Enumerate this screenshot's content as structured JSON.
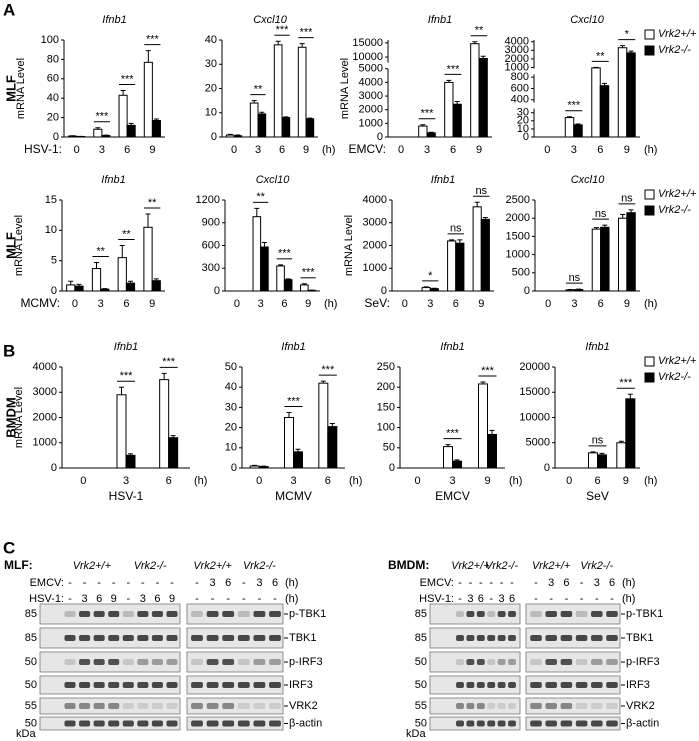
{
  "panel_labels": [
    "A",
    "B",
    "C"
  ],
  "chart_data": [
    {
      "type": "bar",
      "title": "Ifnb1",
      "row_label": "MLF",
      "ylabel": "mRNA Level",
      "x_prefix": "HSV-1:",
      "categories": [
        "0",
        "3",
        "6",
        "9"
      ],
      "series": [
        {
          "color": "#ffffff",
          "values": [
            1,
            8,
            43,
            77
          ],
          "errors": [
            0.3,
            1.5,
            5,
            12
          ]
        },
        {
          "color": "#000000",
          "values": [
            0.5,
            1.5,
            12,
            17
          ],
          "errors": [
            0.2,
            0.4,
            2,
            1.5
          ]
        }
      ],
      "significance": [
        null,
        "***",
        "***",
        "***"
      ],
      "ylim": [
        0,
        100
      ],
      "yticks": [
        0,
        20,
        40,
        60,
        80,
        100
      ]
    },
    {
      "type": "bar",
      "title": "Cxcl10",
      "x_suffix": "(h)",
      "categories": [
        "0",
        "3",
        "6",
        "9"
      ],
      "series": [
        {
          "color": "#ffffff",
          "values": [
            0.8,
            14,
            38,
            37
          ],
          "errors": [
            0.3,
            1,
            1.5,
            1.5
          ]
        },
        {
          "color": "#000000",
          "values": [
            0.5,
            9.5,
            8,
            7.5
          ],
          "errors": [
            0.3,
            0.7,
            0.3,
            0.3
          ]
        }
      ],
      "significance": [
        null,
        "**",
        "***",
        "***"
      ],
      "ylim": [
        0,
        40
      ],
      "yticks": [
        0,
        10,
        20,
        30,
        40
      ]
    },
    {
      "type": "bar",
      "title": "Ifnb1",
      "ylabel": "mRNA Level",
      "x_prefix": "EMCV:",
      "categories": [
        "0",
        "3",
        "6",
        "9"
      ],
      "series": [
        {
          "color": "#ffffff",
          "values": [
            0,
            800,
            4000,
            14700
          ],
          "errors": [
            0,
            100,
            150,
            700
          ]
        },
        {
          "color": "#000000",
          "values": [
            0,
            300,
            2400,
            9500
          ],
          "errors": [
            0,
            50,
            200,
            800
          ]
        }
      ],
      "significance": [
        null,
        "***",
        "***",
        "**"
      ],
      "y_segments": [
        [
          0,
          5000
        ],
        [
          8000,
          16000
        ]
      ],
      "yticks": [
        0,
        1000,
        2000,
        3000,
        4000,
        5000,
        10000,
        15000
      ]
    },
    {
      "type": "bar",
      "title": "Cxcl10",
      "x_suffix": "(h)",
      "categories": [
        "0",
        "3",
        "6",
        "9"
      ],
      "series": [
        {
          "name": "Vrk2+/+",
          "color": "#ffffff",
          "values": [
            0,
            24,
            950,
            3300
          ],
          "errors": [
            0,
            1,
            60,
            250
          ]
        },
        {
          "name": "Vrk2-/-",
          "color": "#000000",
          "values": [
            0,
            15,
            650,
            2700
          ],
          "errors": [
            0,
            1,
            40,
            200
          ]
        }
      ],
      "significance": [
        null,
        "***",
        "**",
        "*"
      ],
      "y_segments": [
        [
          0,
          35
        ],
        [
          350,
          850
        ],
        [
          900,
          4200
        ]
      ],
      "yticks": [
        0,
        10,
        20,
        30,
        400,
        600,
        800,
        1000,
        2000,
        3000,
        4000
      ],
      "legend": "right"
    },
    {
      "type": "bar",
      "title": "Ifnb1",
      "row_label": "MLF",
      "ylabel": "mRNA Level",
      "x_prefix": "MCMV:",
      "categories": [
        "0",
        "3",
        "6",
        "9"
      ],
      "series": [
        {
          "color": "#ffffff",
          "values": [
            1,
            3.7,
            5.5,
            10.5
          ],
          "errors": [
            0.6,
            1,
            2,
            2.2
          ]
        },
        {
          "color": "#000000",
          "values": [
            0.8,
            0.3,
            1.3,
            1.7
          ],
          "errors": [
            0.3,
            0.1,
            0.3,
            0.3
          ]
        }
      ],
      "significance": [
        null,
        "**",
        "**",
        "**"
      ],
      "ylim": [
        0,
        15
      ],
      "yticks": [
        0,
        5,
        10,
        15
      ]
    },
    {
      "type": "bar",
      "title": "Cxcl10",
      "x_suffix": "(h)",
      "categories": [
        "0",
        "3",
        "6",
        "9"
      ],
      "series": [
        {
          "color": "#ffffff",
          "values": [
            0,
            980,
            330,
            80
          ],
          "errors": [
            0,
            110,
            15,
            15
          ]
        },
        {
          "color": "#000000",
          "values": [
            0,
            580,
            150,
            8
          ],
          "errors": [
            0,
            60,
            10,
            3
          ]
        }
      ],
      "significance": [
        null,
        "**",
        "***",
        "***"
      ],
      "ylim": [
        0,
        1200
      ],
      "yticks": [
        0,
        300,
        600,
        900,
        1200
      ]
    },
    {
      "type": "bar",
      "title": "Ifnb1",
      "ylabel": "mRNA Level",
      "x_prefix": "SeV:",
      "categories": [
        "0",
        "3",
        "6",
        "9"
      ],
      "series": [
        {
          "color": "#ffffff",
          "values": [
            0,
            150,
            2200,
            3700
          ],
          "errors": [
            0,
            30,
            50,
            200
          ]
        },
        {
          "color": "#000000",
          "values": [
            0,
            100,
            2100,
            3150
          ],
          "errors": [
            0,
            20,
            150,
            80
          ]
        }
      ],
      "significance": [
        null,
        "*",
        "ns",
        "ns"
      ],
      "ylim": [
        0,
        4000
      ],
      "yticks": [
        0,
        1000,
        2000,
        3000,
        4000
      ]
    },
    {
      "type": "bar",
      "title": "Cxcl10",
      "x_suffix": "(h)",
      "categories": [
        "0",
        "3",
        "6",
        "9"
      ],
      "series": [
        {
          "name": "Vrk2+/+",
          "color": "#ffffff",
          "values": [
            0,
            30,
            1700,
            2000
          ],
          "errors": [
            0,
            10,
            40,
            100
          ]
        },
        {
          "name": "Vrk2-/-",
          "color": "#000000",
          "values": [
            0,
            40,
            1750,
            2150
          ],
          "errors": [
            0,
            10,
            60,
            80
          ]
        }
      ],
      "significance": [
        null,
        "ns",
        "ns",
        "ns"
      ],
      "ylim": [
        0,
        2500
      ],
      "yticks": [
        0,
        500,
        1000,
        1500,
        2000,
        2500
      ],
      "legend": "right"
    },
    {
      "type": "bar",
      "title": "Ifnb1",
      "row_label": "BMDM",
      "ylabel": "mRNA Level",
      "xlabel": "HSV-1",
      "x_suffix": "(h)",
      "categories": [
        "0",
        "3",
        "6"
      ],
      "series": [
        {
          "color": "#ffffff",
          "values": [
            0,
            2900,
            3500
          ],
          "errors": [
            0,
            300,
            250
          ]
        },
        {
          "color": "#000000",
          "values": [
            0,
            500,
            1200
          ],
          "errors": [
            0,
            60,
            80
          ]
        }
      ],
      "significance": [
        null,
        "***",
        "***"
      ],
      "ylim": [
        0,
        4000
      ],
      "yticks": [
        0,
        1000,
        2000,
        3000,
        4000
      ]
    },
    {
      "type": "bar",
      "title": "Ifnb1",
      "xlabel": "MCMV",
      "x_suffix": "(h)",
      "categories": [
        "0",
        "3",
        "6"
      ],
      "series": [
        {
          "color": "#ffffff",
          "values": [
            1,
            25,
            42
          ],
          "errors": [
            0.3,
            2.5,
            1
          ]
        },
        {
          "color": "#000000",
          "values": [
            0.7,
            8,
            20.5
          ],
          "errors": [
            0.2,
            1.3,
            1.5
          ]
        }
      ],
      "significance": [
        null,
        "***",
        "***"
      ],
      "ylim": [
        0,
        50
      ],
      "yticks": [
        0,
        10,
        20,
        30,
        40,
        50
      ]
    },
    {
      "type": "bar",
      "title": "Ifnb1",
      "xlabel": "EMCV",
      "x_suffix": "(h)",
      "categories": [
        "0",
        "3",
        "9"
      ],
      "series": [
        {
          "color": "#ffffff",
          "values": [
            0,
            53,
            208
          ],
          "errors": [
            0,
            5,
            5
          ]
        },
        {
          "color": "#000000",
          "values": [
            0,
            17,
            83
          ],
          "errors": [
            0,
            3,
            10
          ]
        }
      ],
      "significance": [
        null,
        "***",
        "***"
      ],
      "ylim": [
        0,
        250
      ],
      "yticks": [
        0,
        50,
        100,
        150,
        200,
        250
      ]
    },
    {
      "type": "bar",
      "title": "Ifnb1",
      "xlabel": "SeV",
      "x_suffix": "(h)",
      "categories": [
        "0",
        "6",
        "9"
      ],
      "series": [
        {
          "name": "Vrk2+/+",
          "color": "#ffffff",
          "values": [
            0,
            3000,
            5000
          ],
          "errors": [
            0,
            200,
            300
          ]
        },
        {
          "name": "Vrk2-/-",
          "color": "#000000",
          "values": [
            0,
            2600,
            13700
          ],
          "errors": [
            0,
            300,
            900
          ]
        }
      ],
      "significance": [
        null,
        "ns",
        "***"
      ],
      "ylim": [
        0,
        20000
      ],
      "yticks": [
        0,
        5000,
        10000,
        15000,
        20000
      ],
      "legend": "right"
    }
  ],
  "blots": [
    {
      "cell": "MLF:",
      "treatments": [
        "EMCV:",
        "HSV-1:"
      ],
      "unit": "(h)",
      "kda": "kDa",
      "markers": [
        85,
        85,
        50,
        50,
        55,
        50
      ],
      "proteins": [
        "p-TBK1",
        "TBK1",
        "p-IRF3",
        "IRF3",
        "VRK2",
        "β-actin"
      ],
      "blocks": [
        {
          "groups": [
            "Vrk2+/+",
            "Vrk2-/-"
          ],
          "lanes": [
            [
              "-",
              "-",
              "-",
              "-",
              "-",
              "-",
              "-",
              "-"
            ],
            [
              "-",
              "3",
              "6",
              "9",
              "-",
              "3",
              "6",
              "9"
            ]
          ]
        },
        {
          "groups": [
            "Vrk2+/+",
            "Vrk2-/-"
          ],
          "lanes": [
            [
              "-",
              "3",
              "6",
              "-",
              "3",
              "6"
            ],
            [
              "-",
              "-",
              "-",
              "-",
              "-",
              "-"
            ]
          ]
        }
      ]
    },
    {
      "cell": "BMDM:",
      "treatments": [
        "EMCV:",
        "HSV-1:"
      ],
      "unit": "(h)",
      "kda": "kDa",
      "markers": [
        85,
        85,
        50,
        50,
        55,
        50
      ],
      "proteins": [
        "p-TBK1",
        "TBK1",
        "p-IRF3",
        "IRF3",
        "VRK2",
        "β-actin"
      ],
      "blocks": [
        {
          "groups": [
            "Vrk2+/+",
            "Vrk2-/-"
          ],
          "lanes": [
            [
              "-",
              "-",
              "-",
              "-",
              "-",
              "-"
            ],
            [
              "-",
              "3",
              "6",
              "-",
              "3",
              "6"
            ]
          ]
        },
        {
          "groups": [
            "Vrk2+/+",
            "Vrk2-/-"
          ],
          "lanes": [
            [
              "-",
              "3",
              "6",
              "-",
              "3",
              "6"
            ],
            [
              "-",
              "-",
              "-",
              "-",
              "-",
              "-"
            ]
          ]
        }
      ]
    }
  ]
}
